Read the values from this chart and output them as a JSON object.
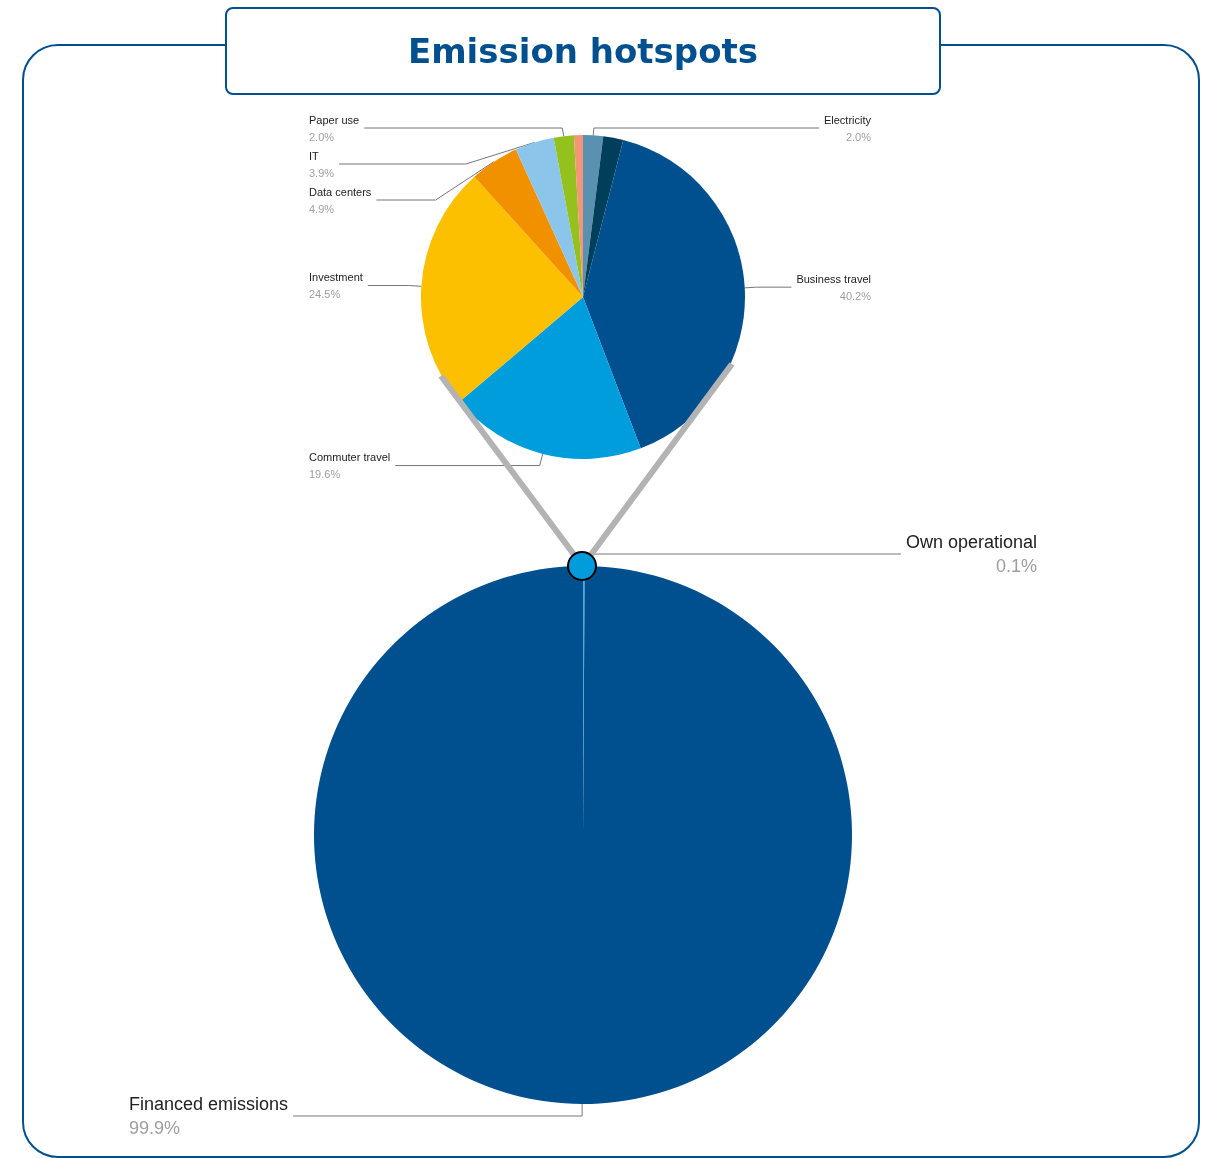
{
  "chart_data": [
    {
      "type": "pie",
      "title": "Emission hotspots",
      "categories": [
        "Electricity",
        null,
        "Business travel",
        "Commuter travel",
        "Investment",
        "Data centers",
        "IT",
        "Paper use",
        null
      ],
      "values": [
        2.0,
        2.0,
        40.2,
        19.6,
        24.5,
        4.9,
        3.9,
        2.0,
        0.9
      ],
      "colors": [
        "#5a90b0",
        "#003f5c",
        "#00508f",
        "#009ddc",
        "#fcc000",
        "#f29100",
        "#8bc6ea",
        "#95c11f",
        "#f59578"
      ],
      "value_labels": [
        "2.0%",
        null,
        "40.2%",
        "19.6%",
        "24.5%",
        "4.9%",
        "3.9%",
        "2.0%",
        null
      ]
    },
    {
      "type": "pie",
      "categories": [
        "Own operational",
        "Financed emissions"
      ],
      "values": [
        0.1,
        99.9
      ],
      "colors": [
        "#4fa9dc",
        "#00508f"
      ],
      "value_labels": [
        "0.1%",
        "99.9%"
      ]
    }
  ]
}
